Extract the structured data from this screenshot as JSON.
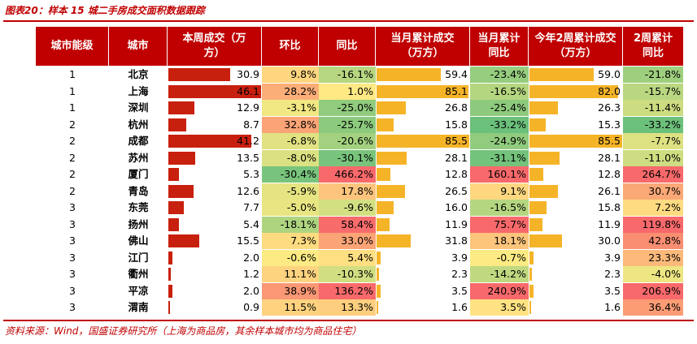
{
  "title": "图表20：样本 15 城二手房成交面积数据跟踪",
  "source": "资料来源：Wind，国盛证券研究所（上海为商品房，其余样本城市均为商品住宅）",
  "colors": {
    "header_bg": "#c00000",
    "weekly_bar": "#c8200e",
    "monthly_bar": "#f5b428",
    "ytd_bar": "#f5b428"
  },
  "headers": {
    "level": "城市能级",
    "city": "城市",
    "weekly": "本周成交（万方）",
    "mom": "环比",
    "yoy": "同比",
    "month_cum": "当月累计成交（万方）",
    "month_yoy": "当月累计同比",
    "ytd": "今年2周累计成交（万方）",
    "ytd_yoy": "2周累计同比"
  },
  "rows": [
    {
      "level": "1",
      "city": "北京",
      "weekly": "30.9",
      "mom": "9.8%",
      "yoy": "-16.1%",
      "month_cum": "59.4",
      "month_yoy": "-23.4%",
      "ytd": "59.0",
      "ytd_yoy": "-21.8%"
    },
    {
      "level": "1",
      "city": "上海",
      "weekly": "46.1",
      "mom": "28.2%",
      "yoy": "1.0%",
      "month_cum": "85.1",
      "month_yoy": "-16.5%",
      "ytd": "82.0",
      "ytd_yoy": "-15.7%"
    },
    {
      "level": "1",
      "city": "深圳",
      "weekly": "12.9",
      "mom": "-3.1%",
      "yoy": "-25.0%",
      "month_cum": "26.8",
      "month_yoy": "-25.4%",
      "ytd": "26.3",
      "ytd_yoy": "-11.4%"
    },
    {
      "level": "2",
      "city": "杭州",
      "weekly": "8.7",
      "mom": "32.8%",
      "yoy": "-25.7%",
      "month_cum": "15.8",
      "month_yoy": "-33.2%",
      "ytd": "15.3",
      "ytd_yoy": "-33.2%"
    },
    {
      "level": "2",
      "city": "成都",
      "weekly": "41.2",
      "mom": "-6.8%",
      "yoy": "-20.6%",
      "month_cum": "85.5",
      "month_yoy": "-24.9%",
      "ytd": "85.5",
      "ytd_yoy": "-7.7%"
    },
    {
      "level": "2",
      "city": "苏州",
      "weekly": "13.5",
      "mom": "-8.0%",
      "yoy": "-30.1%",
      "month_cum": "28.1",
      "month_yoy": "-31.1%",
      "ytd": "28.1",
      "ytd_yoy": "-11.0%"
    },
    {
      "level": "2",
      "city": "厦门",
      "weekly": "5.3",
      "mom": "-30.4%",
      "yoy": "466.2%",
      "month_cum": "12.8",
      "month_yoy": "160.1%",
      "ytd": "12.8",
      "ytd_yoy": "264.7%"
    },
    {
      "level": "2",
      "city": "青岛",
      "weekly": "12.6",
      "mom": "-5.9%",
      "yoy": "17.8%",
      "month_cum": "26.5",
      "month_yoy": "9.1%",
      "ytd": "26.1",
      "ytd_yoy": "30.7%"
    },
    {
      "level": "3",
      "city": "东莞",
      "weekly": "7.7",
      "mom": "-5.0%",
      "yoy": "-9.6%",
      "month_cum": "16.0",
      "month_yoy": "-16.5%",
      "ytd": "15.8",
      "ytd_yoy": "7.2%"
    },
    {
      "level": "3",
      "city": "扬州",
      "weekly": "5.4",
      "mom": "-18.1%",
      "yoy": "58.4%",
      "month_cum": "11.9",
      "month_yoy": "75.7%",
      "ytd": "11.9",
      "ytd_yoy": "119.8%"
    },
    {
      "level": "3",
      "city": "佛山",
      "weekly": "15.5",
      "mom": "7.3%",
      "yoy": "33.0%",
      "month_cum": "31.8",
      "month_yoy": "18.1%",
      "ytd": "30.0",
      "ytd_yoy": "42.8%"
    },
    {
      "level": "3",
      "city": "江门",
      "weekly": "2.0",
      "mom": "-0.6%",
      "yoy": "5.4%",
      "month_cum": "3.9",
      "month_yoy": "-0.7%",
      "ytd": "3.9",
      "ytd_yoy": "23.3%"
    },
    {
      "level": "3",
      "city": "衢州",
      "weekly": "1.2",
      "mom": "11.1%",
      "yoy": "-10.3%",
      "month_cum": "2.3",
      "month_yoy": "-14.2%",
      "ytd": "2.3",
      "ytd_yoy": "-4.0%"
    },
    {
      "level": "3",
      "city": "平凉",
      "weekly": "2.0",
      "mom": "38.9%",
      "yoy": "136.2%",
      "month_cum": "3.5",
      "month_yoy": "240.9%",
      "ytd": "3.5",
      "ytd_yoy": "206.9%"
    },
    {
      "level": "3",
      "city": "渭南",
      "weekly": "0.9",
      "mom": "11.5%",
      "yoy": "13.3%",
      "month_cum": "1.6",
      "month_yoy": "3.5%",
      "ytd": "1.6",
      "ytd_yoy": "36.4%"
    }
  ]
}
